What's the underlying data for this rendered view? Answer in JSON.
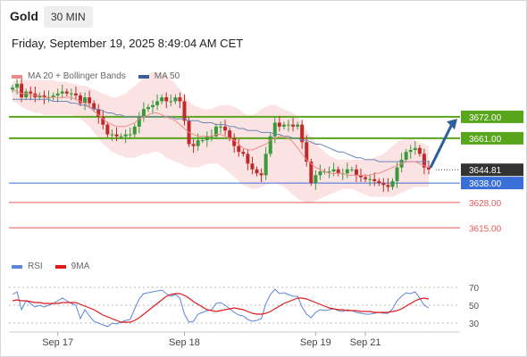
{
  "header": {
    "instrument": "Gold",
    "timeframe": "30 MIN",
    "datetime": "Friday, September 19, 2025 8:49:04 AM CET"
  },
  "legend_main": [
    {
      "label": "MA 20 + Bollinger Bands",
      "color": "#f08a8a"
    },
    {
      "label": "MA 50",
      "color": "#3a5f99"
    }
  ],
  "legend_rsi": [
    {
      "label": "RSI",
      "color": "#5b85d6"
    },
    {
      "label": "9MA",
      "color": "#e01a1a"
    }
  ],
  "colors": {
    "up": "#3a9a3a",
    "down": "#c02a2a",
    "band_fill": "#fbdede",
    "ma20": "#f08a8a",
    "ma50": "#6a86b8",
    "resistance": "#5aa51e",
    "pivot": "#3a6fd8",
    "support": "#e55a5a",
    "current_bg": "#333333",
    "arrow": "#2d5e9e"
  },
  "chart_data": {
    "type": "candlestick",
    "price_axis": {
      "min": 3600,
      "max": 3688
    },
    "price_levels": [
      {
        "label": "3672.00",
        "value": 3672.0,
        "kind": "resistance"
      },
      {
        "label": "3661.00",
        "value": 3661.0,
        "kind": "resistance"
      },
      {
        "label": "3644.81",
        "value": 3644.81,
        "kind": "current"
      },
      {
        "label": "3638.00",
        "value": 3638.0,
        "kind": "pivot"
      },
      {
        "label": "3628.00",
        "value": 3628.0,
        "kind": "support"
      },
      {
        "label": "3615.00",
        "value": 3615.0,
        "kind": "support"
      }
    ],
    "x_ticks": [
      {
        "label": "Sep 17",
        "index": 10
      },
      {
        "label": "Sep 18",
        "index": 38
      },
      {
        "label": "Sep 19",
        "index": 67
      },
      {
        "label": "Sep 21",
        "index": 78
      }
    ],
    "close": [
      3687,
      3689,
      3682,
      3685,
      3684,
      3682,
      3683,
      3682,
      3682,
      3683,
      3684,
      3685,
      3684,
      3684,
      3683,
      3679,
      3682,
      3679,
      3676,
      3672,
      3668,
      3663,
      3663,
      3662,
      3662,
      3663,
      3663,
      3667,
      3672,
      3676,
      3677,
      3678,
      3680,
      3682,
      3680,
      3680,
      3682,
      3680,
      3670,
      3658,
      3657,
      3660,
      3660,
      3662,
      3662,
      3667,
      3667,
      3665,
      3661,
      3657,
      3654,
      3653,
      3648,
      3645,
      3643,
      3642,
      3653,
      3662,
      3669,
      3667,
      3668,
      3668,
      3667,
      3668,
      3659,
      3649,
      3638,
      3642,
      3644,
      3644,
      3644,
      3645,
      3643,
      3643,
      3645,
      3645,
      3642,
      3641,
      3640,
      3640,
      3639,
      3638,
      3637,
      3636,
      3639,
      3646,
      3650,
      3654,
      3655,
      3656,
      3653,
      3646,
      3645
    ],
    "ma20": [
      3686,
      3685,
      3684,
      3684,
      3683,
      3683,
      3683,
      3682,
      3682,
      3682,
      3682,
      3682,
      3682,
      3682,
      3681,
      3680,
      3679,
      3677,
      3675,
      3673,
      3671,
      3669,
      3668,
      3667,
      3667,
      3667,
      3668,
      3669,
      3671,
      3672,
      3673,
      3674,
      3674,
      3673,
      3672,
      3671,
      3670,
      3668,
      3666,
      3664,
      3663,
      3662,
      3662,
      3662,
      3662,
      3663,
      3663,
      3662,
      3661,
      3660,
      3658,
      3656,
      3655,
      3655,
      3656,
      3657,
      3658,
      3660,
      3661,
      3662,
      3662,
      3661,
      3659,
      3656,
      3653,
      3650,
      3648,
      3646,
      3645,
      3644,
      3643,
      3643,
      3643,
      3643,
      3642,
      3642,
      3642,
      3642,
      3642,
      3642,
      3643,
      3643,
      3644,
      3645,
      3646,
      3647,
      3648,
      3649,
      3649,
      3649,
      3648,
      3647,
      3646
    ],
    "ma50": [
      3681,
      3681,
      3681,
      3681,
      3681,
      3681,
      3681,
      3681,
      3681,
      3680,
      3680,
      3680,
      3680,
      3679,
      3679,
      3678,
      3678,
      3677,
      3676,
      3676,
      3675,
      3674,
      3674,
      3673,
      3673,
      3672,
      3672,
      3672,
      3672,
      3672,
      3672,
      3672,
      3672,
      3672,
      3672,
      3672,
      3671,
      3671,
      3671,
      3670,
      3670,
      3670,
      3669,
      3669,
      3669,
      3668,
      3668,
      3668,
      3667,
      3667,
      3666,
      3666,
      3665,
      3665,
      3665,
      3664,
      3664,
      3664,
      3663,
      3663,
      3662,
      3662,
      3661,
      3661,
      3660,
      3660,
      3659,
      3658,
      3658,
      3657,
      3656,
      3655,
      3654,
      3654,
      3653,
      3652,
      3651,
      3651,
      3650,
      3650,
      3650,
      3649,
      3649,
      3649,
      3649,
      3649,
      3649,
      3649,
      3649,
      3649,
      3649,
      3649,
      3649
    ],
    "bb_upper": [
      3690,
      3691,
      3691,
      3691,
      3691,
      3691,
      3691,
      3691,
      3691,
      3691,
      3690,
      3690,
      3690,
      3689,
      3689,
      3688,
      3688,
      3687,
      3686,
      3685,
      3684,
      3683,
      3682,
      3682,
      3683,
      3684,
      3686,
      3688,
      3690,
      3692,
      3694,
      3695,
      3695,
      3694,
      3693,
      3691,
      3689,
      3686,
      3683,
      3680,
      3678,
      3677,
      3676,
      3676,
      3676,
      3677,
      3678,
      3678,
      3678,
      3677,
      3676,
      3674,
      3673,
      3673,
      3674,
      3676,
      3677,
      3678,
      3678,
      3677,
      3676,
      3675,
      3674,
      3672,
      3669,
      3665,
      3662,
      3659,
      3656,
      3654,
      3652,
      3651,
      3650,
      3650,
      3650,
      3650,
      3650,
      3650,
      3650,
      3650,
      3651,
      3652,
      3653,
      3655,
      3657,
      3659,
      3660,
      3661,
      3661,
      3660,
      3659,
      3658,
      3657
    ],
    "bb_lower": [
      3680,
      3679,
      3677,
      3676,
      3675,
      3674,
      3674,
      3673,
      3673,
      3673,
      3673,
      3673,
      3673,
      3673,
      3672,
      3671,
      3669,
      3667,
      3664,
      3661,
      3658,
      3656,
      3654,
      3653,
      3652,
      3651,
      3651,
      3651,
      3652,
      3653,
      3653,
      3654,
      3654,
      3653,
      3651,
      3650,
      3649,
      3648,
      3647,
      3646,
      3646,
      3646,
      3647,
      3648,
      3648,
      3648,
      3647,
      3645,
      3643,
      3641,
      3639,
      3637,
      3636,
      3635,
      3635,
      3636,
      3637,
      3638,
      3638,
      3637,
      3636,
      3634,
      3632,
      3630,
      3629,
      3628,
      3628,
      3629,
      3630,
      3631,
      3632,
      3633,
      3634,
      3635,
      3635,
      3635,
      3634,
      3633,
      3632,
      3631,
      3631,
      3631,
      3631,
      3631,
      3631,
      3632,
      3633,
      3634,
      3635,
      3636,
      3636,
      3636,
      3636
    ],
    "rsi": {
      "ticks": [
        70,
        50,
        30
      ],
      "range": [
        20,
        80
      ],
      "rsi": [
        62,
        65,
        45,
        55,
        52,
        48,
        50,
        48,
        50,
        52,
        55,
        58,
        55,
        52,
        50,
        35,
        45,
        38,
        32,
        30,
        28,
        26,
        30,
        29,
        31,
        33,
        34,
        46,
        57,
        63,
        64,
        65,
        66,
        67,
        63,
        60,
        62,
        58,
        40,
        31,
        32,
        40,
        42,
        44,
        45,
        52,
        53,
        50,
        46,
        42,
        39,
        38,
        34,
        32,
        33,
        35,
        52,
        62,
        68,
        63,
        64,
        62,
        60,
        60,
        48,
        40,
        36,
        42,
        45,
        44,
        45,
        46,
        44,
        43,
        45,
        44,
        42,
        41,
        40,
        40,
        41,
        42,
        41,
        41,
        46,
        55,
        60,
        64,
        63,
        65,
        58,
        50,
        47
      ],
      "ma9": [
        55,
        56,
        55,
        55,
        54,
        53,
        53,
        52,
        52,
        52,
        52,
        53,
        53,
        53,
        53,
        51,
        49,
        47,
        45,
        42,
        39,
        37,
        35,
        33,
        31,
        31,
        31,
        33,
        36,
        40,
        44,
        48,
        52,
        56,
        60,
        62,
        63,
        63,
        61,
        58,
        54,
        51,
        48,
        45,
        44,
        43,
        44,
        45,
        46,
        47,
        46,
        45,
        43,
        41,
        40,
        40,
        41,
        43,
        46,
        49,
        52,
        54,
        56,
        58,
        58,
        57,
        55,
        53,
        51,
        49,
        47,
        46,
        45,
        45,
        44,
        44,
        44,
        43,
        43,
        43,
        42,
        42,
        42,
        42,
        43,
        44,
        46,
        49,
        52,
        55,
        57,
        58,
        57
      ]
    }
  }
}
